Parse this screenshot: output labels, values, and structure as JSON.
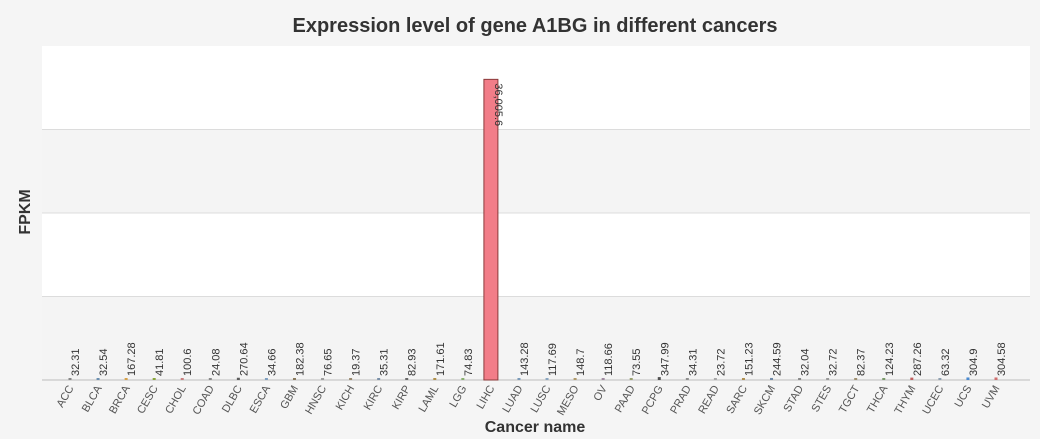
{
  "chart_data": {
    "type": "bar",
    "title": "Expression level of gene A1BG in different cancers",
    "xlabel": "Cancer name",
    "ylabel": "FPKM",
    "ylim": [
      0,
      40000
    ],
    "grid": true,
    "categories": [
      "ACC",
      "BLCA",
      "BRCA",
      "CESC",
      "CHOL",
      "COAD",
      "DLBC",
      "ESCA",
      "GBM",
      "HNSC",
      "KICH",
      "KIRC",
      "KIRP",
      "LAML",
      "LGG",
      "LIHC",
      "LUAD",
      "LUSC",
      "MESO",
      "OV",
      "PAAD",
      "PCPG",
      "PRAD",
      "READ",
      "SARC",
      "SKCM",
      "STAD",
      "STES",
      "TGCT",
      "THCA",
      "THYM",
      "UCEC",
      "UCS",
      "UVM"
    ],
    "values": [
      32.31,
      32.54,
      167.28,
      41.81,
      100.6,
      24.08,
      270.64,
      34.66,
      182.38,
      76.65,
      19.37,
      35.31,
      82.93,
      171.61,
      74.83,
      36005.6,
      143.28,
      117.69,
      148.7,
      118.66,
      73.55,
      347.99,
      34.31,
      23.72,
      151.23,
      244.59,
      32.04,
      32.72,
      82.37,
      124.23,
      287.26,
      63.32,
      304.9,
      304.58
    ],
    "value_labels": [
      "32.31",
      "32.54",
      "167.28",
      "41.81",
      "100.6",
      "24.08",
      "270.64",
      "34.66",
      "182.38",
      "76.65",
      "19.37",
      "35.31",
      "82.93",
      "171.61",
      "74.83",
      "36,005.6",
      "143.28",
      "117.69",
      "148.7",
      "118.66",
      "73.55",
      "347.99",
      "34.31",
      "23.72",
      "151.23",
      "244.59",
      "32.04",
      "32.72",
      "82.37",
      "124.23",
      "287.26",
      "63.32",
      "304.9",
      "304.58"
    ],
    "colors": [
      "#888888",
      "#6b8fb0",
      "#d6a24a",
      "#8aa63a",
      "#c97f7f",
      "#8a8a8a",
      "#5c5c5c",
      "#7fa0c0",
      "#8b7a5c",
      "#a0a0a0",
      "#9a8a70",
      "#7a90a8",
      "#6a6a6a",
      "#b0904a",
      "#8ab070",
      "#f27d88",
      "#7a9ab8",
      "#8aa6c0",
      "#b09a6a",
      "#a08aa0",
      "#9aa070",
      "#505050",
      "#909090",
      "#a8a8a8",
      "#b09050",
      "#708aa8",
      "#8a8a8a",
      "#9a9a9a",
      "#a09070",
      "#7a9a6a",
      "#c06060",
      "#90a0b0",
      "#4a8ad0",
      "#d07070"
    ]
  }
}
